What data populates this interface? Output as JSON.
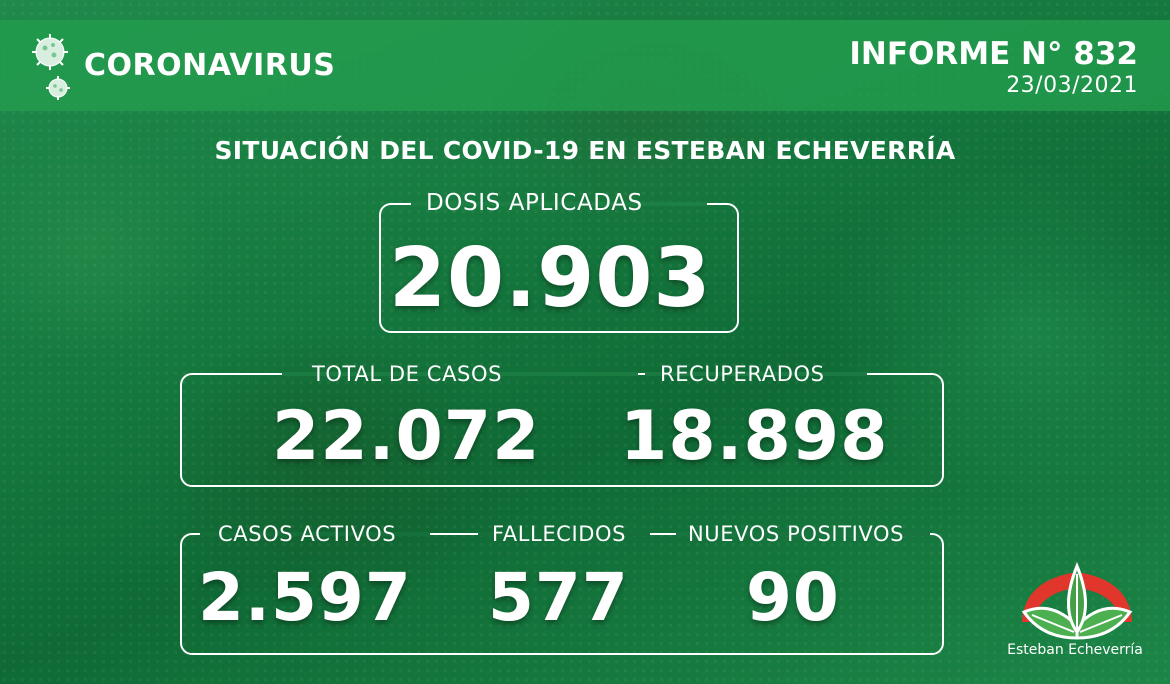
{
  "header": {
    "brand": "CORONAVIRUS",
    "report_title": "INFORME N° 832",
    "report_date": "23/03/2021"
  },
  "headline": "SITUACIÓN DEL COVID-19 EN ESTEBAN ECHEVERRÍA",
  "stats": {
    "dosis": {
      "label": "DOSIS APLICADAS",
      "value": "20.903"
    },
    "total_casos": {
      "label": "TOTAL DE CASOS",
      "value": "22.072"
    },
    "recuperados": {
      "label": "RECUPERADOS",
      "value": "18.898"
    },
    "casos_activos": {
      "label": "CASOS ACTIVOS",
      "value": "2.597"
    },
    "fallecidos": {
      "label": "FALLECIDOS",
      "value": "577"
    },
    "nuevos_positivos": {
      "label": "NUEVOS POSITIVOS",
      "value": "90"
    }
  },
  "logo": {
    "text": "Esteban Echeverría"
  },
  "icons": [
    "coronavirus-icon",
    "esteban-echeverria-logo"
  ],
  "colors": {
    "header_bg": "#229e4e",
    "background": "#167a3f",
    "text": "#ffffff",
    "logo_red": "#e0362b"
  }
}
